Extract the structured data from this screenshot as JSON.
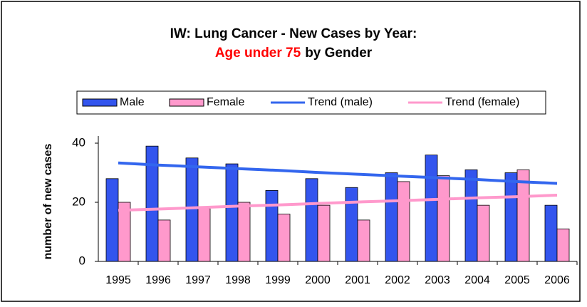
{
  "chart_data": {
    "type": "bar",
    "title": "IW: Lung Cancer - New Cases by Year:",
    "subtitle_highlight": "Age under 75",
    "subtitle": "by Gender",
    "y_label": "number of new cases",
    "categories": [
      "1995",
      "1996",
      "1997",
      "1998",
      "1999",
      "2000",
      "2001",
      "2002",
      "2003",
      "2004",
      "2005",
      "2006"
    ],
    "series": [
      {
        "name": "Male",
        "color": "#3355ee",
        "values": [
          28,
          39,
          35,
          33,
          24,
          28,
          25,
          30,
          36,
          31,
          30,
          19
        ]
      },
      {
        "name": "Female",
        "color": "#ff99cc",
        "values": [
          20,
          14,
          18,
          20,
          16,
          19,
          14,
          27,
          29,
          19,
          31,
          11
        ]
      }
    ],
    "trends": [
      {
        "name": "Trend (male)",
        "color": "#3366ee",
        "values": [
          33.3,
          32.6,
          32.0,
          31.4,
          30.8,
          30.1,
          29.5,
          28.9,
          28.3,
          27.7,
          27.0,
          26.4
        ]
      },
      {
        "name": "Trend (female)",
        "color": "#ff99cc",
        "values": [
          17.3,
          17.7,
          18.2,
          18.7,
          19.1,
          19.6,
          20.1,
          20.5,
          21.0,
          21.5,
          21.9,
          22.4
        ]
      }
    ],
    "ylim": [
      0,
      40
    ],
    "yticks": [
      0,
      20,
      40
    ],
    "legend": "top",
    "highlight_color": "#ff0000"
  }
}
